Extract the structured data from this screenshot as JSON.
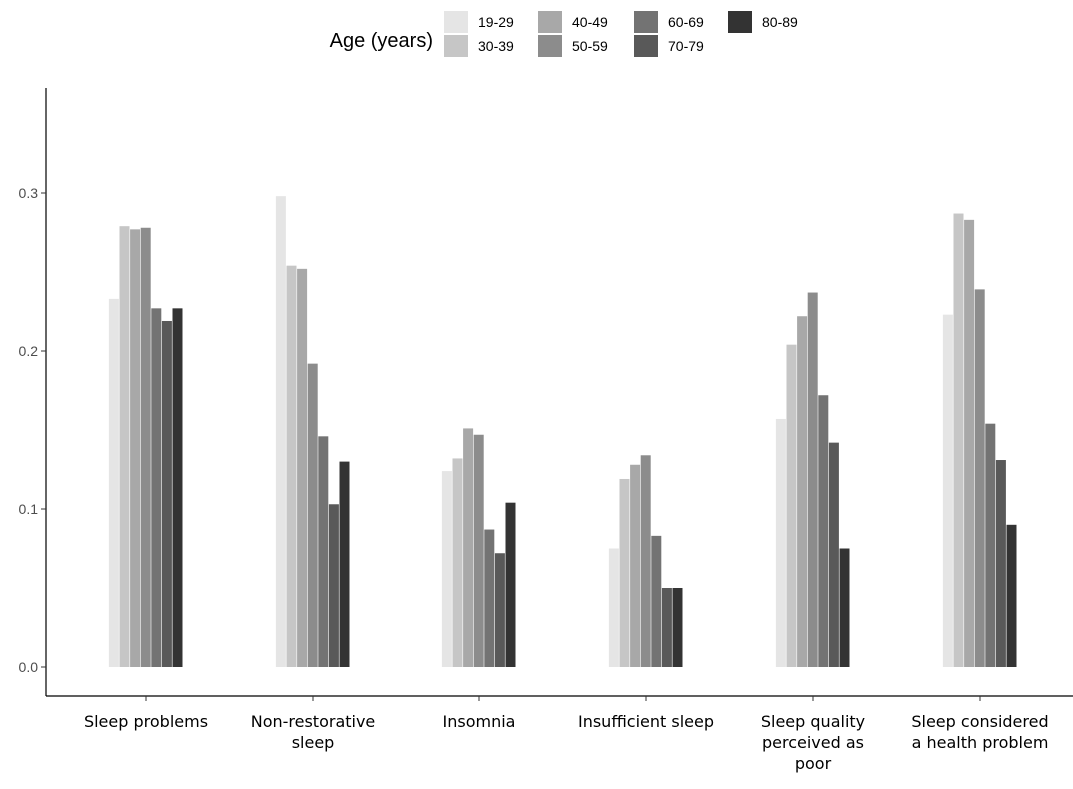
{
  "chart_data": {
    "type": "bar",
    "categories": [
      [
        "Sleep problems"
      ],
      [
        "Non-restorative",
        "sleep"
      ],
      [
        "Insomnia"
      ],
      [
        "Insufficient sleep"
      ],
      [
        "Sleep quality",
        "perceived as",
        "poor"
      ],
      [
        "Sleep considered",
        "a health problem"
      ]
    ],
    "series": [
      {
        "name": "19-29",
        "color": "#e5e5e5",
        "values": [
          0.233,
          0.298,
          0.124,
          0.075,
          0.157,
          0.223
        ]
      },
      {
        "name": "30-39",
        "color": "#c6c6c6",
        "values": [
          0.279,
          0.254,
          0.132,
          0.119,
          0.204,
          0.287
        ]
      },
      {
        "name": "40-49",
        "color": "#a8a8a8",
        "values": [
          0.277,
          0.252,
          0.151,
          0.128,
          0.222,
          0.283
        ]
      },
      {
        "name": "50-59",
        "color": "#8c8c8c",
        "values": [
          0.278,
          0.192,
          0.147,
          0.134,
          0.237,
          0.239
        ]
      },
      {
        "name": "60-69",
        "color": "#737373",
        "values": [
          0.227,
          0.146,
          0.087,
          0.083,
          0.172,
          0.154
        ]
      },
      {
        "name": "70-79",
        "color": "#595959",
        "values": [
          0.219,
          0.103,
          0.072,
          0.05,
          0.142,
          0.131
        ]
      },
      {
        "name": "80-89",
        "color": "#333333",
        "values": [
          0.227,
          0.13,
          0.104,
          0.05,
          0.075,
          0.09
        ]
      }
    ],
    "yticks": [
      "0.0",
      "0.1",
      "0.2",
      "0.3"
    ],
    "ylim": [
      0,
      0.36
    ],
    "legend_title": "Age (years)",
    "legend_position": "top",
    "grid": false
  }
}
